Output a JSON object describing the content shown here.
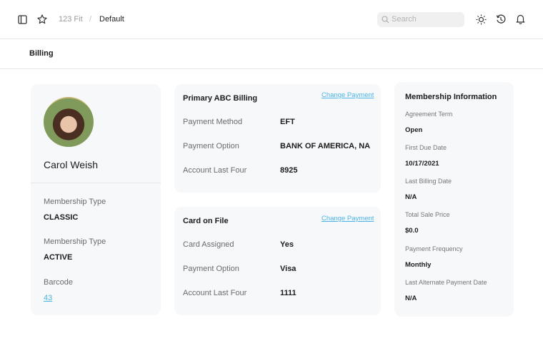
{
  "header": {
    "breadcrumb": [
      "123 Fit",
      "/",
      "Default"
    ],
    "search_placeholder": "Search",
    "icons": [
      "sidebar-icon",
      "star-icon",
      "sun-icon",
      "history-icon",
      "bell-icon"
    ]
  },
  "page": {
    "title": "Billing"
  },
  "profile": {
    "name": "Carol Weish",
    "fields": [
      {
        "label": "Membership Type",
        "value": "CLASSIC"
      },
      {
        "label": "Membership Type",
        "value": "ACTIVE"
      },
      {
        "label": "Barcode",
        "value": "43"
      }
    ]
  },
  "primary": {
    "title": "Primary ABC Billing",
    "action": "Change Payment",
    "rows": [
      {
        "label": "Payment Method",
        "value": "EFT"
      },
      {
        "label": "Payment Option",
        "value": "BANK OF AMERICA, NA"
      },
      {
        "label": "Account Last Four",
        "value": "8925"
      }
    ]
  },
  "card_on_file": {
    "title": "Card on File",
    "action": "Change Payment",
    "rows": [
      {
        "label": "Card Assigned",
        "value": "Yes"
      },
      {
        "label": "Payment Option",
        "value": "Visa"
      },
      {
        "label": "Account Last Four",
        "value": "1111"
      }
    ]
  },
  "membership": {
    "title": "Membership Information",
    "items": [
      {
        "label": "Agreement Term",
        "value": "Open"
      },
      {
        "label": "First Due Date",
        "value": "10/17/2021"
      },
      {
        "label": "Last Billing Date",
        "value": "N/A"
      },
      {
        "label": "Total Sale Price",
        "value": "$0.0"
      },
      {
        "label": "Payment Frequency",
        "value": "Monthly"
      },
      {
        "label": "Last Alternate Payment Date",
        "value": "N/A"
      }
    ]
  },
  "colors": {
    "link": "#4ab4e6",
    "card": "#f7f8fa"
  }
}
